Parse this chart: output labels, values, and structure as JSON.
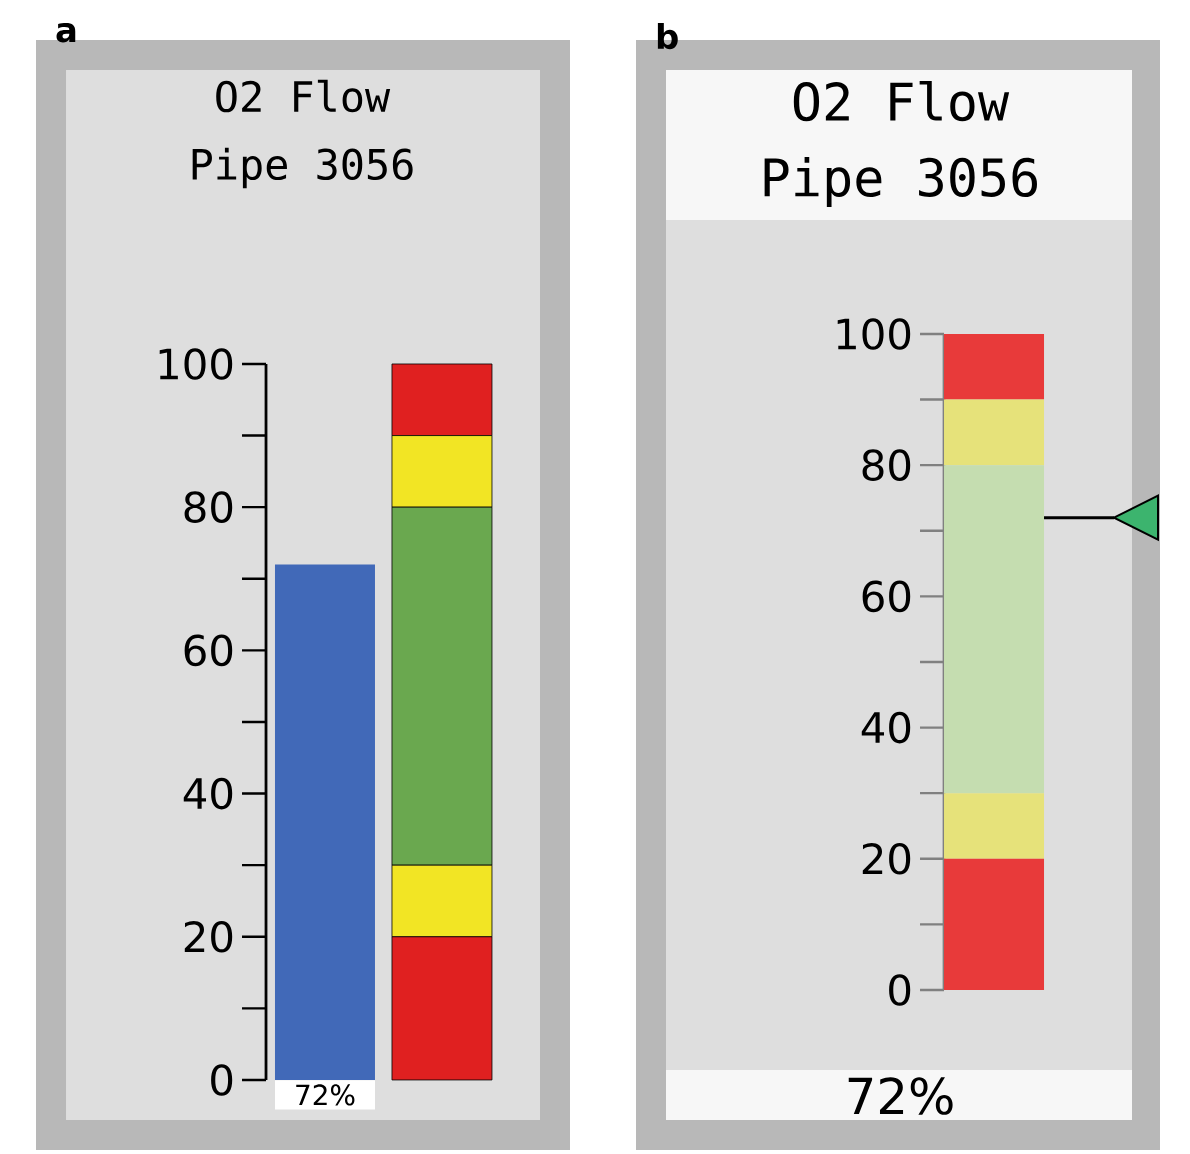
{
  "chart_data": [
    {
      "type": "bar",
      "stacked": true,
      "title": "O2 Flow",
      "subtitle": "Pipe 3056",
      "categories": [
        null,
        null
      ],
      "ylim": [
        0,
        100
      ],
      "yticks": [
        0,
        {
          "value": 10,
          "label": null
        },
        20,
        {
          "value": 30,
          "label": null
        },
        40,
        {
          "value": 50,
          "label": null
        },
        60,
        {
          "value": 70,
          "label": null
        },
        80,
        {
          "value": 90,
          "label": null
        },
        100
      ],
      "series": [
        {
          "color": "#4169b8",
          "values": [
            72,
            null
          ],
          "value_labels": [
            "72%",
            null
          ]
        },
        {
          "color": "#e02020",
          "values": [
            null,
            20
          ]
        },
        {
          "color": "#f2e524",
          "values": [
            null,
            10
          ]
        },
        {
          "color": "#6aa84f",
          "values": [
            null,
            50
          ]
        },
        {
          "color": "#f2e524",
          "values": [
            null,
            10
          ]
        },
        {
          "color": "#e02020",
          "values": [
            null,
            10
          ]
        }
      ],
      "annotations": [
        "a"
      ]
    },
    {
      "type": "bar",
      "stacked": true,
      "title": "O2 Flow",
      "subtitle": "Pipe 3056",
      "categories": [
        null
      ],
      "ylim": [
        0,
        100
      ],
      "yticks": [
        0,
        {
          "value": 10,
          "label": null
        },
        20,
        {
          "value": 30,
          "label": null
        },
        40,
        {
          "value": 50,
          "label": null
        },
        60,
        {
          "value": 70,
          "label": null
        },
        80,
        {
          "value": 90,
          "label": null
        },
        100
      ],
      "series": [
        {
          "color": "#e83a3a",
          "values": [
            20
          ]
        },
        {
          "color": "#e6e27a",
          "values": [
            10
          ]
        },
        {
          "color": "#c5ddb0",
          "values": [
            50
          ]
        },
        {
          "color": "#e6e27a",
          "values": [
            10
          ]
        },
        {
          "color": "#e83a3a",
          "values": [
            10
          ]
        }
      ],
      "ref_lines": [
        {
          "axis": "y",
          "value": 72
        }
      ],
      "annotations": [
        "b",
        "72%"
      ]
    }
  ]
}
